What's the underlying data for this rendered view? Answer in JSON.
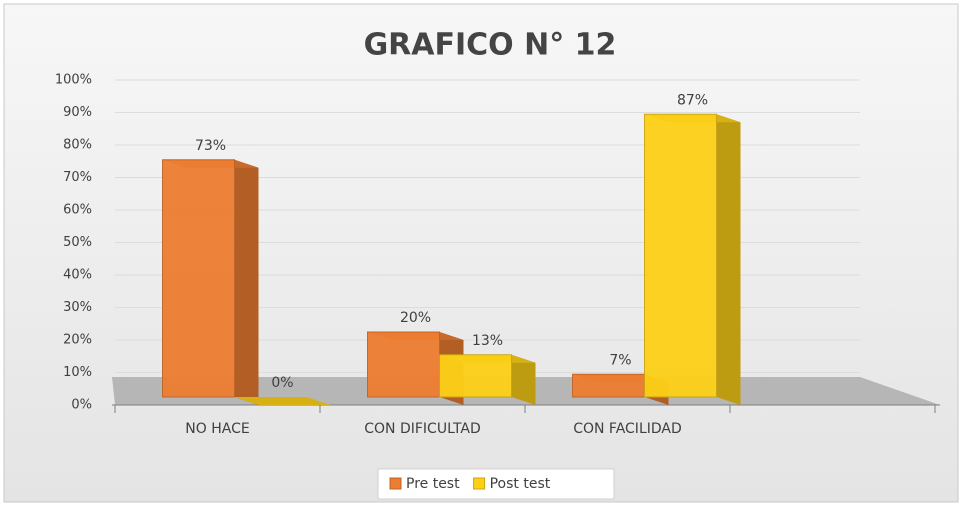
{
  "chart_data": {
    "type": "bar",
    "title": "GRAFICO N° 12",
    "categories": [
      "NO HACE",
      "CON DIFICULTAD",
      "CON FACILIDAD",
      null
    ],
    "series": [
      {
        "name": "Pre test",
        "color": "#ed7d31",
        "values": [
          73,
          20,
          7,
          null
        ],
        "value_labels": [
          "73%",
          "20%",
          "7%",
          null
        ]
      },
      {
        "name": "Post test",
        "color": "#fdd017",
        "values": [
          0,
          13,
          87,
          null
        ],
        "value_labels": [
          "0%",
          "13%",
          "87%",
          null
        ]
      }
    ],
    "ylim": [
      0,
      100
    ],
    "yticks": [
      {
        "value": 0,
        "label": "0%"
      },
      {
        "value": 10,
        "label": "10%"
      },
      {
        "value": 20,
        "label": "20%"
      },
      {
        "value": 30,
        "label": "30%"
      },
      {
        "value": 40,
        "label": "40%"
      },
      {
        "value": 50,
        "label": "50%"
      },
      {
        "value": 60,
        "label": "60%"
      },
      {
        "value": 70,
        "label": "70%"
      },
      {
        "value": 80,
        "label": "80%"
      },
      {
        "value": 90,
        "label": "90%"
      },
      {
        "value": 100,
        "label": "100%"
      }
    ],
    "grid": true,
    "legend": "bottom"
  }
}
